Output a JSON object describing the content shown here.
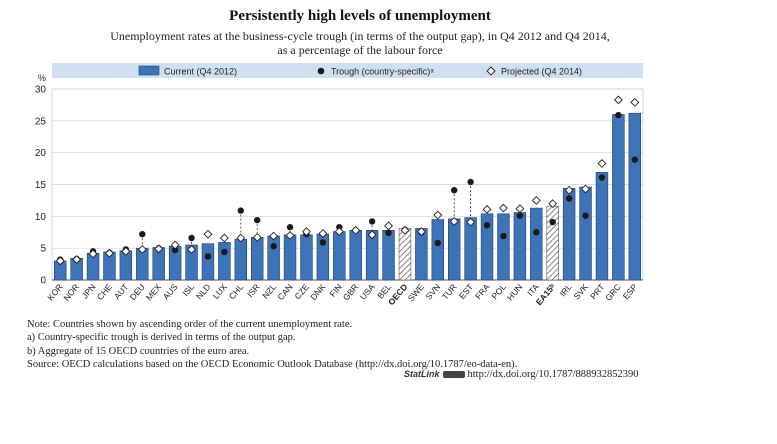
{
  "chart_data": {
    "type": "bar",
    "title": "Persistently high levels of unemployment",
    "subtitle_line1": "Unemployment rates at the business-cycle trough (in terms of the output gap), in Q4 2012 and Q4 2014,",
    "subtitle_line2": "as a percentage of the labour force",
    "ylabel": "%",
    "ylim": [
      0,
      30
    ],
    "yticks": [
      "0",
      "5",
      "10",
      "15",
      "20",
      "25",
      "30"
    ],
    "legend": {
      "current": "Current (Q4 2012)",
      "trough": "Trough (country-specific)ᵃ",
      "projected": "Projected (Q4 2014)"
    },
    "categories": [
      "KOR",
      "NOR",
      "JPN",
      "CHE",
      "AUT",
      "DEU",
      "MEX",
      "AUS",
      "ISL",
      "NLD",
      "LUX",
      "CHL",
      "ISR",
      "NZL",
      "CAN",
      "CZE",
      "DNK",
      "FIN",
      "GBR",
      "USA",
      "BEL",
      "OECD",
      "SWE",
      "SVN",
      "TUR",
      "EST",
      "FRA",
      "POL",
      "HUN",
      "ITA",
      "EA15ᵇ",
      "IRL",
      "SVK",
      "PRT",
      "GRC",
      "ESP"
    ],
    "bold_categories": [
      "OECD",
      "EA15ᵇ"
    ],
    "hatched_categories": [
      "OECD",
      "EA15ᵇ"
    ],
    "series": [
      {
        "name": "Current (Q4 2012)",
        "values": [
          3.0,
          3.4,
          4.2,
          4.4,
          4.6,
          5.0,
          5.1,
          5.3,
          5.5,
          5.7,
          5.9,
          6.4,
          6.7,
          6.9,
          7.1,
          7.1,
          7.2,
          7.6,
          7.8,
          7.8,
          7.8,
          8.1,
          8.1,
          9.5,
          9.6,
          9.8,
          10.4,
          10.4,
          10.6,
          11.3,
          11.6,
          14.4,
          14.6,
          16.9,
          26.0,
          26.2
        ]
      },
      {
        "name": "Trough (country-specific)",
        "values": [
          3.2,
          3.3,
          4.5,
          4.3,
          4.8,
          7.2,
          5.0,
          4.7,
          6.6,
          3.7,
          4.4,
          10.9,
          9.4,
          5.3,
          8.3,
          7.2,
          5.9,
          8.3,
          7.8,
          9.2,
          7.4,
          7.9,
          7.5,
          5.8,
          14.1,
          15.4,
          8.6,
          6.9,
          10.1,
          7.5,
          9.1,
          12.8,
          10.1,
          16.1,
          25.9,
          18.9
        ]
      },
      {
        "name": "Projected (Q4 2014)",
        "values": [
          3.0,
          3.2,
          4.1,
          4.2,
          4.5,
          4.8,
          4.9,
          5.5,
          4.8,
          7.2,
          6.6,
          6.6,
          6.7,
          6.9,
          7.0,
          7.6,
          7.3,
          7.6,
          7.8,
          7.1,
          8.5,
          7.8,
          7.6,
          10.2,
          9.2,
          9.1,
          11.1,
          11.3,
          11.2,
          12.5,
          12.0,
          14.1,
          14.3,
          18.3,
          28.3,
          27.9
        ]
      }
    ]
  },
  "notes": {
    "note": "Note:  Countries shown by ascending order of the current unemployment rate.",
    "a": "a)  Country-specific trough is derived in terms of the output gap.",
    "b": "b)  Aggregate of 15 OECD countries of the euro area.",
    "source": "Source:  OECD calculations based on the OECD Economic Outlook Database (http://dx.doi.org/10.1787/eo-data-en)."
  },
  "statlink": {
    "label": "StatLink",
    "url": "http://dx.doi.org/10.1787/888932852390"
  },
  "colors": {
    "bar": "#3f73b7",
    "bar_stroke": "#1f3f70",
    "legend_bg": "#cfe0f2",
    "trough": "#1a1a1a",
    "grid": "#cfcfcf",
    "axis": "#555555"
  }
}
